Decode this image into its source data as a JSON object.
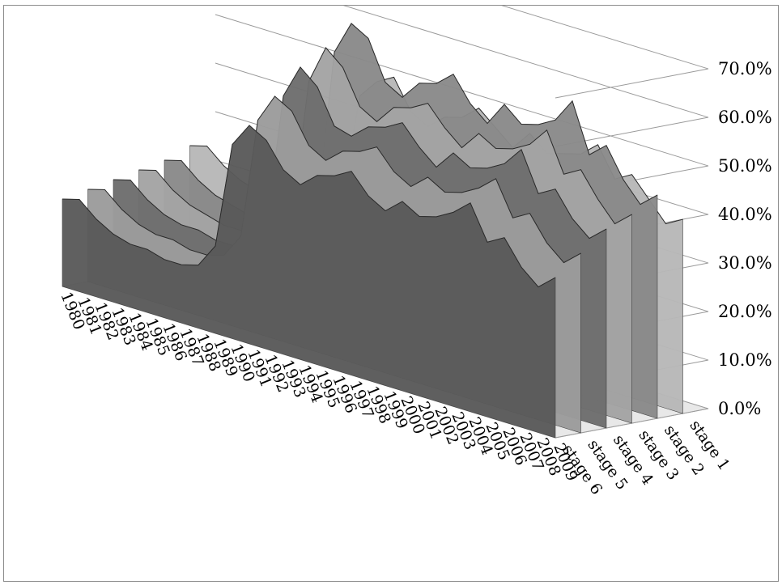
{
  "chart_data": {
    "type": "area-3d",
    "title": "",
    "xlabel": "",
    "ylabel": "",
    "ylim": [
      0,
      0.7
    ],
    "yticks": [
      "0.0%",
      "10.0%",
      "20.0%",
      "30.0%",
      "40.0%",
      "50.0%",
      "60.0%",
      "70.0%"
    ],
    "grid": true,
    "legend": "none",
    "categories": [
      "1980",
      "1981",
      "1982",
      "1983",
      "1984",
      "1985",
      "1986",
      "1987",
      "1988",
      "1989",
      "1990",
      "1991",
      "1992",
      "1993",
      "1994",
      "1995",
      "1996",
      "1997",
      "1998",
      "1999",
      "2000",
      "2001",
      "2002",
      "2003",
      "2004",
      "2005",
      "2006",
      "2007",
      "2008",
      "2009"
    ],
    "series": [
      {
        "name": "stage 1",
        "values": [
          0.24,
          0.25,
          0.22,
          0.2,
          0.19,
          0.18,
          0.17,
          0.17,
          0.18,
          0.24,
          0.45,
          0.49,
          0.51,
          0.45,
          0.43,
          0.46,
          0.47,
          0.5,
          0.47,
          0.44,
          0.48,
          0.45,
          0.46,
          0.47,
          0.5,
          0.44,
          0.46,
          0.42,
          0.38,
          0.4
        ]
      },
      {
        "name": "stage 2",
        "values": [
          0.22,
          0.23,
          0.2,
          0.18,
          0.17,
          0.16,
          0.16,
          0.16,
          0.17,
          0.22,
          0.55,
          0.62,
          0.6,
          0.52,
          0.5,
          0.54,
          0.55,
          0.58,
          0.53,
          0.5,
          0.55,
          0.52,
          0.53,
          0.55,
          0.6,
          0.5,
          0.53,
          0.47,
          0.43,
          0.46
        ]
      },
      {
        "name": "stage 3",
        "values": [
          0.21,
          0.22,
          0.19,
          0.17,
          0.16,
          0.15,
          0.15,
          0.15,
          0.16,
          0.21,
          0.5,
          0.58,
          0.55,
          0.48,
          0.46,
          0.5,
          0.51,
          0.53,
          0.49,
          0.46,
          0.5,
          0.48,
          0.49,
          0.51,
          0.55,
          0.47,
          0.49,
          0.44,
          0.4,
          0.43
        ]
      },
      {
        "name": "stage 4",
        "values": [
          0.2,
          0.21,
          0.18,
          0.16,
          0.15,
          0.15,
          0.14,
          0.14,
          0.15,
          0.2,
          0.48,
          0.55,
          0.52,
          0.45,
          0.44,
          0.47,
          0.48,
          0.5,
          0.46,
          0.43,
          0.47,
          0.45,
          0.46,
          0.48,
          0.52,
          0.44,
          0.46,
          0.41,
          0.38,
          0.41
        ]
      },
      {
        "name": "stage 5",
        "values": [
          0.19,
          0.2,
          0.17,
          0.15,
          0.14,
          0.14,
          0.13,
          0.13,
          0.14,
          0.19,
          0.44,
          0.5,
          0.48,
          0.42,
          0.4,
          0.43,
          0.44,
          0.46,
          0.42,
          0.4,
          0.43,
          0.41,
          0.42,
          0.44,
          0.47,
          0.4,
          0.42,
          0.37,
          0.34,
          0.37
        ]
      },
      {
        "name": "stage 6",
        "values": [
          0.18,
          0.19,
          0.16,
          0.14,
          0.13,
          0.13,
          0.12,
          0.12,
          0.13,
          0.18,
          0.4,
          0.45,
          0.43,
          0.38,
          0.36,
          0.39,
          0.4,
          0.42,
          0.38,
          0.36,
          0.39,
          0.37,
          0.38,
          0.4,
          0.43,
          0.36,
          0.38,
          0.33,
          0.3,
          0.33
        ]
      }
    ]
  }
}
